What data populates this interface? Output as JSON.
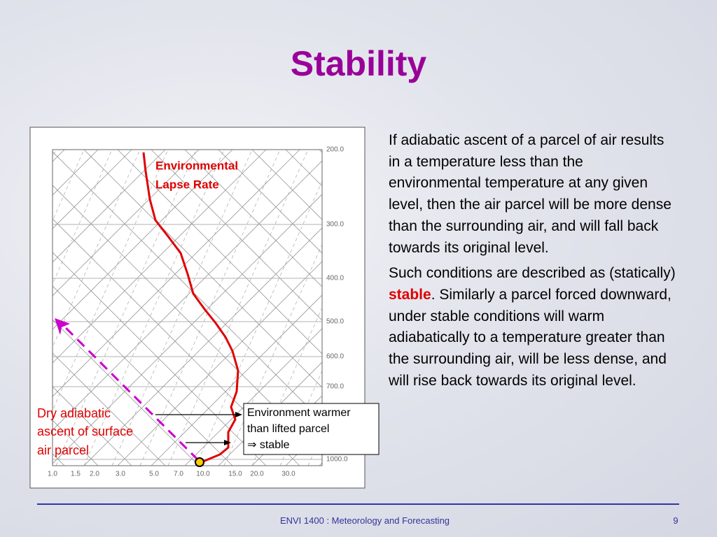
{
  "header": {
    "title": "Stability"
  },
  "diagram": {
    "pressure_labels": [
      "200.0",
      "300.0",
      "400.0",
      "500.0",
      "600.0",
      "700.0",
      "1000.0"
    ],
    "mixing_ratio_labels": [
      "1.0",
      "1.5",
      "2.0",
      "3.0",
      "5.0",
      "7.0",
      "10.0",
      "15.0",
      "20.0",
      "30.0"
    ],
    "curve_label": [
      "Environmental",
      "Lapse Rate"
    ],
    "parcel_label": [
      "Dry adiabatic",
      "ascent of surface",
      "air parcel"
    ],
    "callout": [
      "Environment warmer",
      "than lifted parcel",
      "⇒ stable"
    ]
  },
  "body": {
    "paragraph_1": "If adiabatic ascent of a parcel of air results in a temperature less than the environmental temperature at any given level, then the air parcel will be more dense than the surrounding air, and will fall back towards its original level.",
    "paragraph_2_before": "Such conditions are described as (statically) ",
    "paragraph_2_emphasis": "stable",
    "paragraph_2_after": ". Similarly a parcel forced downward, under stable conditions will warm adiabatically to a temperature greater than the surrounding air, will be less dense, and will rise back towards its original level."
  },
  "footer": {
    "course": "ENVI 1400 : Meteorology and Forecasting",
    "page": "9"
  }
}
